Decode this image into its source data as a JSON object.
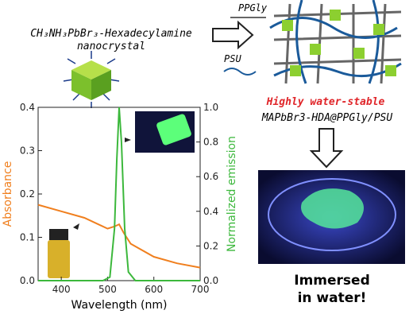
{
  "chart_data": {
    "type": "line",
    "xlabel": "Wavelength (nm)",
    "ylabel": "Absorbance",
    "y2label": "Normalized emission",
    "xlim": [
      350,
      700
    ],
    "xticks": [
      400,
      500,
      600,
      700
    ],
    "ylim": [
      0,
      0.4
    ],
    "yticks": [
      {
        "value": 0,
        "label": "0.0"
      },
      0.1,
      0.2,
      0.3,
      0.4
    ],
    "y2lim": [
      0,
      1.0
    ],
    "y2ticks": [
      {
        "value": 0,
        "label": "0.0"
      },
      0.2,
      0.4,
      0.6,
      0.8,
      {
        "value": 1,
        "label": "1.0"
      }
    ],
    "series": [
      {
        "name": "Absorbance",
        "color": "#f07f1e",
        "x": [
          350,
          400,
          450,
          500,
          515,
          525,
          535,
          550,
          600,
          650,
          700
        ],
        "values": [
          0.175,
          0.16,
          0.145,
          0.12,
          0.125,
          0.13,
          0.11,
          0.085,
          0.055,
          0.04,
          0.03
        ]
      },
      {
        "name": "Normalized emission",
        "color": "#3cb83c",
        "axis": "y2",
        "x": [
          350,
          490,
          505,
          515,
          520,
          525,
          530,
          537,
          545,
          560,
          700
        ],
        "values": [
          0,
          0,
          0.02,
          0.3,
          0.7,
          1.0,
          0.8,
          0.3,
          0.05,
          0,
          0
        ]
      }
    ]
  },
  "labels": {
    "compound": "CH₃NH₃PbBr₃-Hexadecylamine",
    "compound_sub": "nanocrystal",
    "polymer1": "PPGly",
    "polymer2": "PSU",
    "stability": "Highly water-stable",
    "composite": "MAPbBr3-HDA@PPGly/PSU",
    "immersed1": "Immersed",
    "immersed2": "in water!"
  }
}
